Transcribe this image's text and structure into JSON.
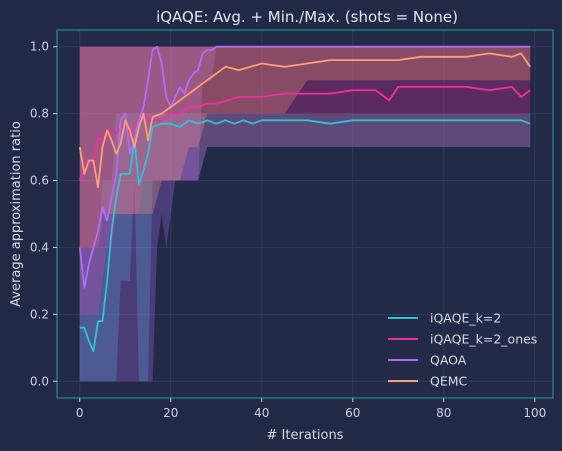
{
  "chart_data": {
    "type": "line",
    "title": "iQAQE: Avg. + Min./Max. (shots = None)",
    "xlabel": "# Iterations",
    "ylabel": "Average approximation ratio",
    "xlim": [
      -5,
      104
    ],
    "ylim": [
      -0.05,
      1.05
    ],
    "xticks": [
      0,
      20,
      40,
      60,
      80,
      100
    ],
    "yticks": [
      0.0,
      0.2,
      0.4,
      0.6,
      0.8,
      1.0
    ],
    "ytick_labels": [
      "0.0",
      "0.2",
      "0.4",
      "0.6",
      "0.8",
      "1.0"
    ],
    "grid": true,
    "legend_position": "lower right",
    "background": "#212946",
    "axes_edge_color": "#2a9d9d",
    "series": [
      {
        "name": "iQAQE_k=2",
        "color": "#2ec4d2",
        "x": [
          0,
          1,
          2,
          3,
          4,
          5,
          6,
          7,
          8,
          9,
          10,
          11,
          12,
          13,
          14,
          15,
          16,
          18,
          20,
          22,
          24,
          26,
          28,
          30,
          32,
          34,
          36,
          38,
          40,
          45,
          50,
          55,
          60,
          65,
          70,
          75,
          80,
          85,
          90,
          95,
          97,
          99
        ],
        "mean": [
          0.16,
          0.16,
          0.12,
          0.09,
          0.18,
          0.18,
          0.3,
          0.45,
          0.55,
          0.62,
          0.62,
          0.62,
          0.72,
          0.59,
          0.63,
          0.68,
          0.76,
          0.77,
          0.77,
          0.76,
          0.78,
          0.77,
          0.78,
          0.77,
          0.78,
          0.77,
          0.78,
          0.77,
          0.78,
          0.78,
          0.78,
          0.77,
          0.78,
          0.78,
          0.78,
          0.78,
          0.78,
          0.78,
          0.78,
          0.78,
          0.78,
          0.77
        ],
        "min": [
          0.0,
          0.0,
          0.0,
          0.0,
          0.0,
          0.0,
          0.0,
          0.0,
          0.0,
          0.3,
          0.3,
          0.3,
          0.6,
          0.0,
          0.0,
          0.0,
          0.6,
          0.6,
          0.6,
          0.6,
          0.6,
          0.6,
          0.7,
          0.7,
          0.7,
          0.7,
          0.7,
          0.7,
          0.7,
          0.7,
          0.7,
          0.7,
          0.7,
          0.7,
          0.7,
          0.7,
          0.7,
          0.7,
          0.7,
          0.7,
          0.7,
          0.7
        ],
        "max": [
          0.4,
          0.4,
          0.4,
          0.4,
          0.4,
          0.6,
          0.6,
          0.6,
          0.8,
          0.8,
          0.8,
          0.8,
          0.8,
          0.8,
          0.8,
          0.8,
          0.8,
          0.8,
          0.8,
          0.8,
          0.8,
          0.8,
          0.8,
          0.8,
          0.8,
          0.8,
          0.8,
          0.8,
          0.8,
          0.8,
          0.8,
          0.8,
          0.8,
          0.8,
          0.8,
          0.8,
          0.8,
          0.8,
          0.8,
          0.8,
          0.8,
          0.8
        ]
      },
      {
        "name": "iQAQE_k=2_ones",
        "color": "#f0309a",
        "x": [
          0,
          1,
          2,
          3,
          4,
          5,
          6,
          7,
          8,
          9,
          10,
          11,
          12,
          13,
          14,
          15,
          16,
          18,
          20,
          22,
          24,
          26,
          28,
          30,
          35,
          40,
          45,
          50,
          55,
          60,
          65,
          68,
          70,
          75,
          80,
          85,
          90,
          95,
          97,
          99
        ],
        "mean": [
          0.6,
          0.64,
          0.66,
          0.65,
          0.73,
          0.72,
          0.75,
          0.74,
          0.74,
          0.76,
          0.77,
          0.74,
          0.76,
          0.77,
          0.8,
          0.78,
          0.78,
          0.78,
          0.8,
          0.8,
          0.82,
          0.82,
          0.83,
          0.83,
          0.85,
          0.85,
          0.86,
          0.86,
          0.86,
          0.87,
          0.87,
          0.84,
          0.88,
          0.88,
          0.88,
          0.88,
          0.87,
          0.88,
          0.85,
          0.87
        ],
        "min": [
          0.2,
          0.2,
          0.2,
          0.2,
          0.2,
          0.3,
          0.4,
          0.4,
          0.5,
          0.5,
          0.5,
          0.5,
          0.5,
          0.5,
          0.6,
          0.6,
          0.6,
          0.6,
          0.6,
          0.6,
          0.6,
          0.6,
          0.7,
          0.7,
          0.7,
          0.7,
          0.7,
          0.7,
          0.7,
          0.7,
          0.7,
          0.7,
          0.7,
          0.7,
          0.7,
          0.7,
          0.7,
          0.7,
          0.7,
          0.7
        ],
        "max": [
          1.0,
          1.0,
          1.0,
          1.0,
          1.0,
          1.0,
          1.0,
          1.0,
          1.0,
          1.0,
          1.0,
          1.0,
          1.0,
          1.0,
          1.0,
          1.0,
          1.0,
          1.0,
          1.0,
          1.0,
          1.0,
          1.0,
          1.0,
          1.0,
          1.0,
          1.0,
          1.0,
          1.0,
          1.0,
          1.0,
          1.0,
          1.0,
          1.0,
          1.0,
          1.0,
          1.0,
          1.0,
          1.0,
          1.0,
          1.0
        ]
      },
      {
        "name": "QAOA",
        "color": "#b26cf5",
        "x": [
          0,
          1,
          2,
          3,
          4,
          5,
          6,
          7,
          8,
          9,
          10,
          11,
          12,
          13,
          14,
          15,
          16,
          17,
          18,
          19,
          20,
          21,
          22,
          23,
          24,
          25,
          26,
          27,
          28,
          29,
          30,
          32,
          35,
          40,
          50,
          60,
          70,
          80,
          90,
          99
        ],
        "mean": [
          0.4,
          0.28,
          0.35,
          0.4,
          0.45,
          0.52,
          0.48,
          0.55,
          0.62,
          0.78,
          0.8,
          0.68,
          0.72,
          0.78,
          0.82,
          0.9,
          0.99,
          1.0,
          0.95,
          0.85,
          0.82,
          0.85,
          0.88,
          0.86,
          0.9,
          0.92,
          0.93,
          0.98,
          0.99,
          0.99,
          1.0,
          1.0,
          1.0,
          1.0,
          1.0,
          1.0,
          1.0,
          1.0,
          1.0,
          1.0
        ],
        "min": [
          0.0,
          0.0,
          0.0,
          0.0,
          0.0,
          0.0,
          0.0,
          0.0,
          0.0,
          0.0,
          0.0,
          0.0,
          0.0,
          0.0,
          0.0,
          0.0,
          0.0,
          0.4,
          0.5,
          0.4,
          0.5,
          0.6,
          0.6,
          0.6,
          0.6,
          0.6,
          0.6,
          0.9,
          0.9,
          0.9,
          1.0,
          1.0,
          1.0,
          1.0,
          1.0,
          1.0,
          1.0,
          1.0,
          1.0,
          1.0
        ],
        "max": [
          1.0,
          1.0,
          1.0,
          1.0,
          1.0,
          1.0,
          1.0,
          1.0,
          1.0,
          1.0,
          1.0,
          1.0,
          1.0,
          1.0,
          1.0,
          1.0,
          1.0,
          1.0,
          1.0,
          1.0,
          1.0,
          1.0,
          1.0,
          1.0,
          1.0,
          1.0,
          1.0,
          1.0,
          1.0,
          1.0,
          1.0,
          1.0,
          1.0,
          1.0,
          1.0,
          1.0,
          1.0,
          1.0,
          1.0,
          1.0
        ]
      },
      {
        "name": "QEMC",
        "color": "#fe9f78",
        "x": [
          0,
          1,
          2,
          3,
          4,
          5,
          6,
          7,
          8,
          9,
          10,
          11,
          12,
          13,
          14,
          15,
          16,
          18,
          20,
          22,
          24,
          26,
          28,
          30,
          32,
          35,
          40,
          45,
          50,
          55,
          60,
          65,
          70,
          75,
          80,
          85,
          90,
          95,
          97,
          99
        ],
        "mean": [
          0.7,
          0.62,
          0.66,
          0.66,
          0.58,
          0.7,
          0.75,
          0.72,
          0.68,
          0.71,
          0.78,
          0.75,
          0.7,
          0.76,
          0.8,
          0.72,
          0.79,
          0.8,
          0.82,
          0.84,
          0.86,
          0.88,
          0.9,
          0.92,
          0.94,
          0.93,
          0.95,
          0.94,
          0.95,
          0.96,
          0.96,
          0.96,
          0.96,
          0.97,
          0.97,
          0.97,
          0.98,
          0.97,
          0.98,
          0.94
        ],
        "min": [
          0.4,
          0.4,
          0.4,
          0.4,
          0.4,
          0.5,
          0.5,
          0.5,
          0.5,
          0.5,
          0.5,
          0.5,
          0.5,
          0.5,
          0.5,
          0.5,
          0.5,
          0.6,
          0.6,
          0.6,
          0.7,
          0.7,
          0.8,
          0.8,
          0.8,
          0.8,
          0.8,
          0.8,
          0.9,
          0.9,
          0.9,
          0.9,
          0.9,
          0.9,
          0.9,
          0.9,
          0.9,
          0.9,
          0.9,
          0.9
        ],
        "max": [
          1.0,
          1.0,
          1.0,
          1.0,
          1.0,
          1.0,
          1.0,
          1.0,
          1.0,
          1.0,
          1.0,
          1.0,
          1.0,
          1.0,
          1.0,
          1.0,
          1.0,
          1.0,
          1.0,
          1.0,
          1.0,
          1.0,
          1.0,
          1.0,
          1.0,
          1.0,
          1.0,
          1.0,
          1.0,
          1.0,
          1.0,
          1.0,
          1.0,
          1.0,
          1.0,
          1.0,
          1.0,
          1.0,
          1.0,
          1.0
        ]
      }
    ]
  }
}
